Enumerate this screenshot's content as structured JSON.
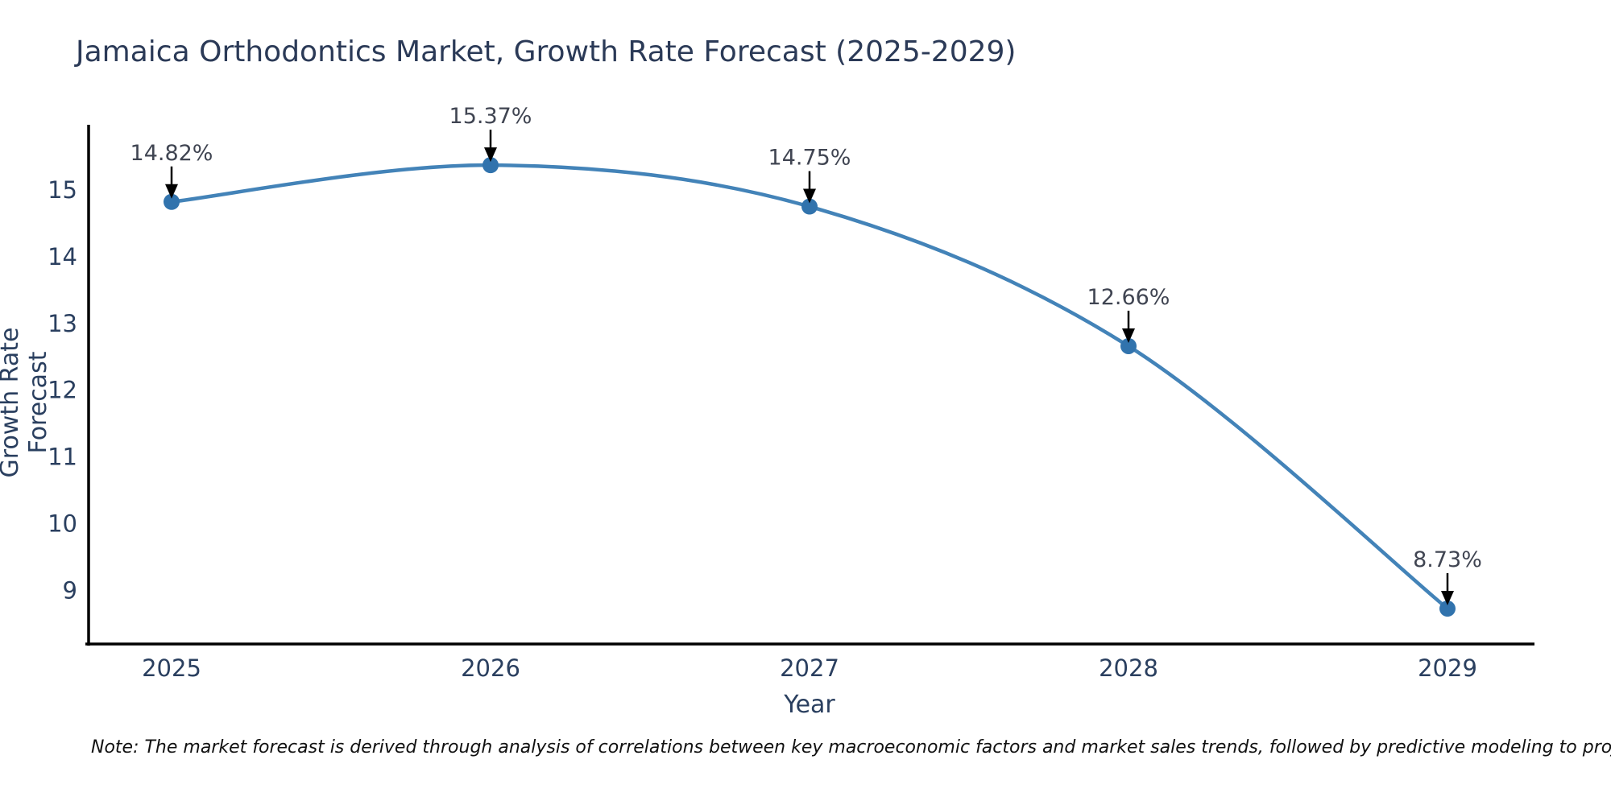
{
  "title": "Jamaica Orthodontics Market, Growth Rate Forecast (2025-2029)",
  "note": "Note: The market forecast is derived through analysis of correlations between key macroeconomic factors and market sales trends, followed by predictive modeling to project future sales",
  "chart_data": {
    "type": "line",
    "title": "Jamaica Orthodontics Market, Growth Rate Forecast (2025-2029)",
    "x": [
      "2025",
      "2026",
      "2027",
      "2028",
      "2029"
    ],
    "series": [
      {
        "name": "Growth Rate Forecast",
        "values": [
          14.82,
          15.37,
          14.75,
          12.66,
          8.73
        ],
        "labels": [
          "14.82%",
          "15.37%",
          "14.75%",
          "12.66%",
          "8.73%"
        ]
      }
    ],
    "xlabel": "Year",
    "ylabel": "Growth Rate Forecast",
    "yticks": [
      9,
      10,
      11,
      12,
      13,
      14,
      15
    ],
    "ylim": [
      8.2,
      15.95
    ],
    "grid": false,
    "legend_position": "none",
    "annotation_style": "value label with down arrow to each marker",
    "colors": {
      "line": "#4383b8",
      "marker": "#3173ad",
      "axis": "#000000",
      "arrow": "#000000",
      "tick_text": "#2a3f5f",
      "annotation_text": "#404552",
      "background": "#ffffff"
    }
  }
}
